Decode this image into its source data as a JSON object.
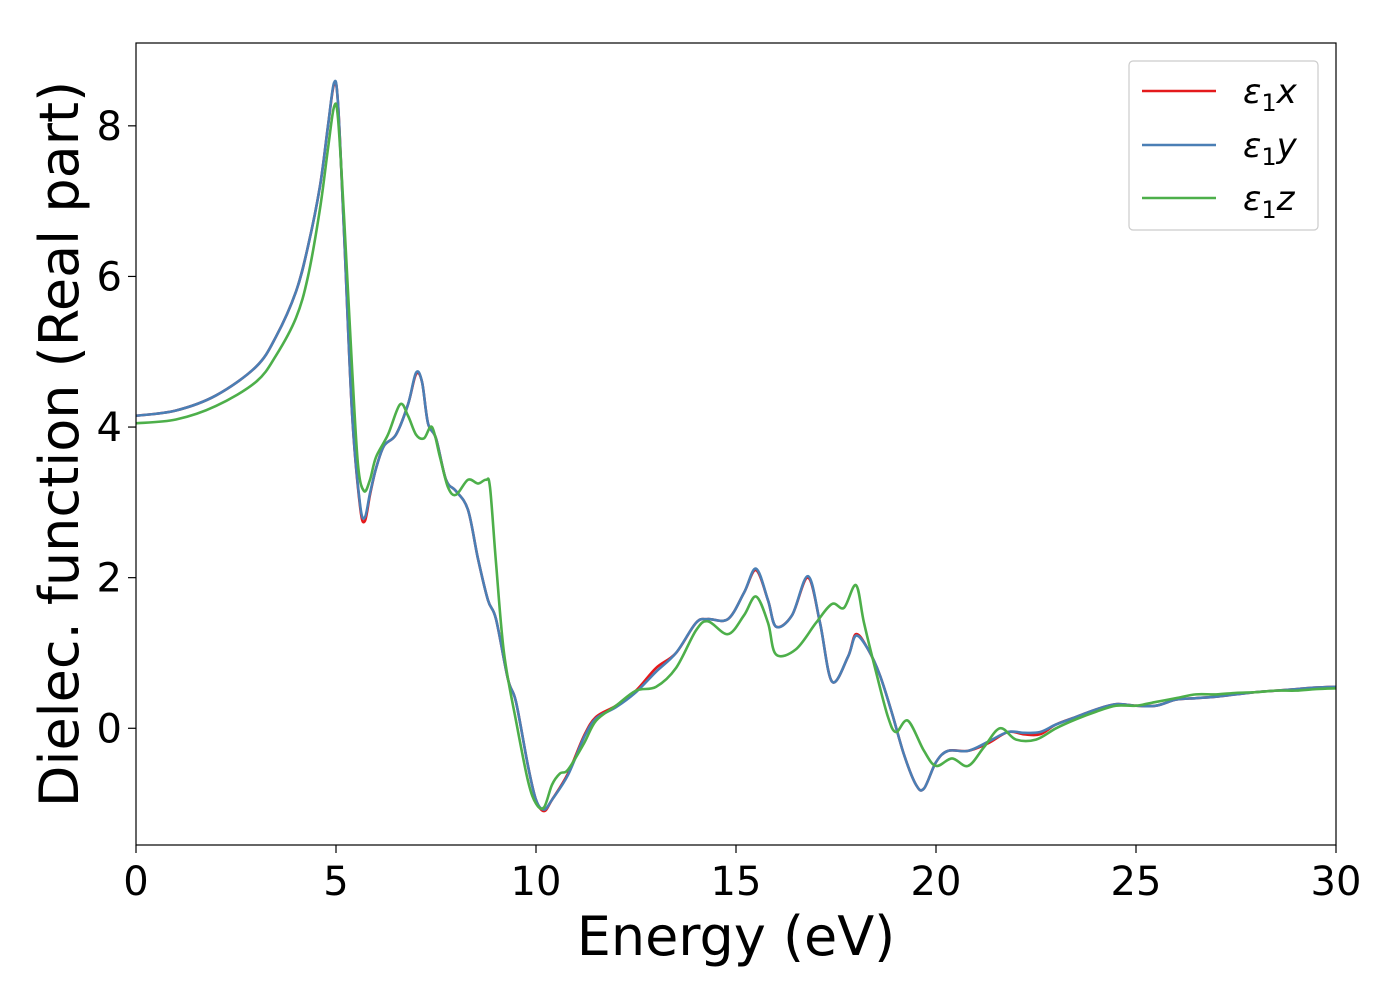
{
  "chart_data": {
    "type": "line",
    "title": "",
    "xlabel": "Energy (eV)",
    "ylabel": "Dielec. function (Real part)",
    "xlim": [
      0,
      30
    ],
    "ylim": [
      -1.55,
      9.1
    ],
    "xticks": [
      0,
      5,
      10,
      15,
      20,
      25,
      30
    ],
    "yticks": [
      0,
      2,
      4,
      6,
      8
    ],
    "grid": false,
    "legend_position": "top-right",
    "series": [
      {
        "name": "ε₁x",
        "legend_base": "ε",
        "legend_sub": "1",
        "legend_var": "x",
        "color": "#e41a1c",
        "x": [
          0,
          1,
          2,
          3,
          3.5,
          4,
          4.3,
          4.6,
          4.8,
          4.95,
          5.05,
          5.2,
          5.4,
          5.6,
          5.72,
          5.85,
          6.0,
          6.2,
          6.5,
          6.8,
          7.0,
          7.15,
          7.3,
          7.5,
          7.75,
          8.0,
          8.3,
          8.55,
          8.8,
          9.0,
          9.3,
          9.5,
          9.8,
          10.0,
          10.2,
          10.4,
          10.8,
          11.2,
          11.5,
          12.0,
          12.5,
          13.0,
          13.5,
          14.0,
          14.3,
          14.8,
          15.2,
          15.5,
          15.8,
          16.0,
          16.4,
          16.8,
          17.1,
          17.4,
          17.8,
          18.0,
          18.3,
          18.6,
          18.9,
          19.2,
          19.5,
          19.7,
          20.0,
          20.3,
          20.8,
          21.3,
          21.8,
          22.2,
          22.6,
          23.0,
          23.5,
          24.0,
          24.5,
          25.0,
          25.5,
          26.0,
          26.5,
          27.0,
          27.5,
          28.0,
          28.5,
          29.0,
          29.5,
          30.0
        ],
        "values": [
          4.15,
          4.22,
          4.42,
          4.8,
          5.2,
          5.8,
          6.4,
          7.2,
          8.0,
          8.55,
          8.3,
          6.6,
          4.2,
          2.95,
          2.75,
          3.1,
          3.45,
          3.75,
          3.9,
          4.3,
          4.7,
          4.6,
          4.05,
          3.85,
          3.3,
          3.15,
          2.9,
          2.25,
          1.7,
          1.45,
          0.65,
          0.35,
          -0.5,
          -0.95,
          -1.1,
          -0.95,
          -0.6,
          -0.1,
          0.15,
          0.3,
          0.5,
          0.8,
          1.0,
          1.4,
          1.45,
          1.45,
          1.8,
          2.1,
          1.7,
          1.35,
          1.5,
          2.0,
          1.4,
          0.62,
          0.95,
          1.25,
          1.05,
          0.7,
          0.2,
          -0.35,
          -0.75,
          -0.8,
          -0.45,
          -0.3,
          -0.3,
          -0.2,
          -0.05,
          -0.08,
          -0.08,
          0.05,
          0.15,
          0.25,
          0.32,
          0.3,
          0.3,
          0.38,
          0.4,
          0.42,
          0.45,
          0.48,
          0.5,
          0.52,
          0.54,
          0.55
        ]
      },
      {
        "name": "ε₁y",
        "legend_base": "ε",
        "legend_sub": "1",
        "legend_var": "y",
        "color": "#4a7fb5",
        "x": [
          0,
          1,
          2,
          3,
          3.5,
          4,
          4.3,
          4.6,
          4.8,
          4.95,
          5.05,
          5.2,
          5.4,
          5.6,
          5.72,
          5.85,
          6.0,
          6.2,
          6.5,
          6.8,
          7.0,
          7.15,
          7.3,
          7.5,
          7.75,
          8.0,
          8.3,
          8.55,
          8.8,
          9.0,
          9.3,
          9.5,
          9.8,
          10.0,
          10.2,
          10.4,
          10.8,
          11.2,
          11.5,
          12.0,
          12.5,
          13.0,
          13.5,
          14.0,
          14.3,
          14.8,
          15.2,
          15.5,
          15.8,
          16.0,
          16.4,
          16.8,
          17.1,
          17.4,
          17.8,
          18.0,
          18.3,
          18.6,
          18.9,
          19.2,
          19.5,
          19.7,
          20.0,
          20.3,
          20.8,
          21.3,
          21.8,
          22.2,
          22.6,
          23.0,
          23.5,
          24.0,
          24.5,
          25.0,
          25.5,
          26.0,
          26.5,
          27.0,
          27.5,
          28.0,
          28.5,
          29.0,
          29.5,
          30.0
        ],
        "values": [
          4.15,
          4.22,
          4.42,
          4.8,
          5.2,
          5.8,
          6.4,
          7.2,
          8.0,
          8.57,
          8.3,
          6.6,
          4.2,
          2.98,
          2.8,
          3.12,
          3.45,
          3.75,
          3.9,
          4.3,
          4.72,
          4.6,
          4.05,
          3.85,
          3.3,
          3.15,
          2.9,
          2.25,
          1.7,
          1.45,
          0.65,
          0.35,
          -0.5,
          -0.95,
          -1.08,
          -0.95,
          -0.62,
          -0.12,
          0.13,
          0.28,
          0.48,
          0.75,
          1.0,
          1.4,
          1.45,
          1.45,
          1.8,
          2.12,
          1.7,
          1.35,
          1.5,
          2.02,
          1.4,
          0.62,
          0.95,
          1.23,
          1.05,
          0.7,
          0.2,
          -0.35,
          -0.75,
          -0.8,
          -0.45,
          -0.3,
          -0.3,
          -0.18,
          -0.05,
          -0.06,
          -0.05,
          0.05,
          0.15,
          0.25,
          0.32,
          0.3,
          0.3,
          0.38,
          0.4,
          0.42,
          0.45,
          0.48,
          0.5,
          0.52,
          0.54,
          0.55
        ]
      },
      {
        "name": "ε₁z",
        "legend_base": "ε",
        "legend_sub": "1",
        "legend_var": "z",
        "color": "#4daf4a",
        "x": [
          0,
          1,
          2,
          3,
          3.5,
          4,
          4.3,
          4.6,
          4.8,
          4.95,
          5.05,
          5.2,
          5.4,
          5.55,
          5.7,
          5.85,
          6.0,
          6.3,
          6.6,
          6.8,
          7.0,
          7.2,
          7.4,
          7.6,
          7.8,
          8.0,
          8.3,
          8.55,
          8.75,
          8.85,
          9.0,
          9.2,
          9.5,
          9.8,
          10.0,
          10.2,
          10.4,
          10.6,
          10.8,
          11.2,
          11.5,
          12.0,
          12.5,
          13.0,
          13.5,
          14.0,
          14.3,
          14.8,
          15.2,
          15.5,
          15.8,
          16.0,
          16.5,
          17.0,
          17.4,
          17.7,
          18.0,
          18.2,
          18.5,
          18.8,
          19.0,
          19.3,
          19.7,
          20.0,
          20.4,
          20.8,
          21.2,
          21.6,
          22.0,
          22.5,
          23.0,
          23.5,
          24.0,
          24.5,
          25.0,
          25.5,
          26.0,
          26.5,
          27.0,
          27.5,
          28.0,
          28.5,
          29.0,
          29.5,
          30.0
        ],
        "values": [
          4.05,
          4.1,
          4.28,
          4.6,
          4.95,
          5.45,
          6.0,
          6.9,
          7.7,
          8.25,
          8.1,
          6.8,
          4.8,
          3.5,
          3.15,
          3.3,
          3.6,
          3.9,
          4.3,
          4.15,
          3.9,
          3.85,
          4.0,
          3.6,
          3.2,
          3.1,
          3.3,
          3.25,
          3.3,
          3.2,
          2.2,
          1.0,
          0.1,
          -0.7,
          -1.0,
          -1.05,
          -0.75,
          -0.6,
          -0.55,
          -0.2,
          0.1,
          0.3,
          0.5,
          0.55,
          0.8,
          1.3,
          1.42,
          1.25,
          1.5,
          1.75,
          1.4,
          0.98,
          1.05,
          1.4,
          1.65,
          1.6,
          1.9,
          1.4,
          0.75,
          0.15,
          -0.05,
          0.1,
          -0.3,
          -0.5,
          -0.4,
          -0.5,
          -0.25,
          0.0,
          -0.15,
          -0.15,
          0.0,
          0.12,
          0.22,
          0.3,
          0.3,
          0.35,
          0.4,
          0.45,
          0.45,
          0.47,
          0.48,
          0.5,
          0.5,
          0.52,
          0.53
        ]
      }
    ]
  }
}
